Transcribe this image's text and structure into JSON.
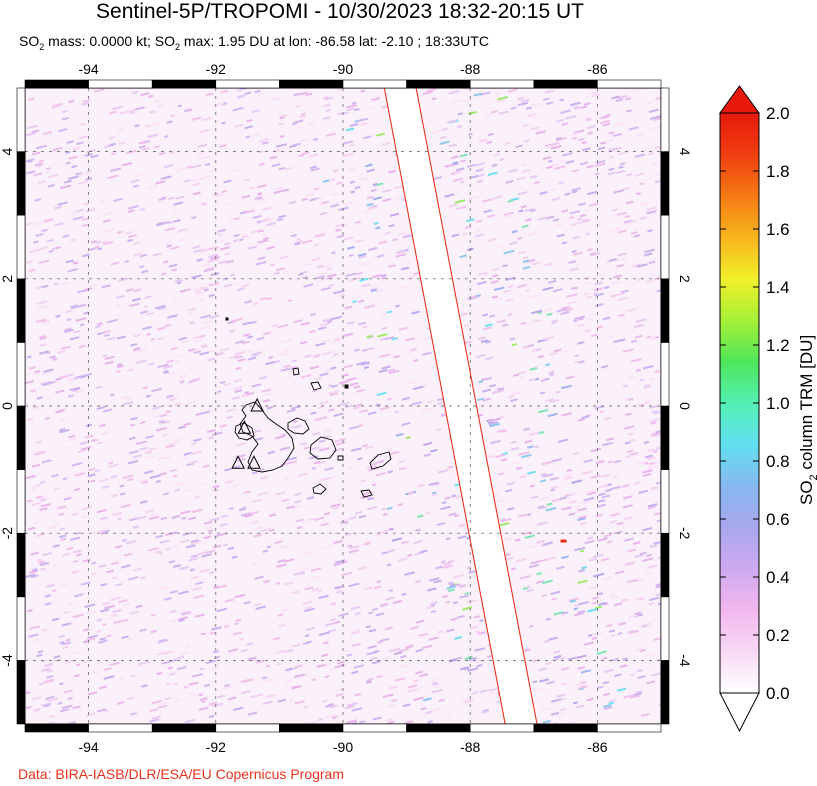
{
  "header": {
    "title": "Sentinel-5P/TROPOMI - 10/30/2023 18:32-20:15 UT",
    "subtitle_parts": [
      "SO",
      "2",
      " mass: 0.0000 kt; SO",
      "2",
      " max: 1.95 DU at lon: -86.58 lat: -2.10 ; 18:33UTC"
    ]
  },
  "map": {
    "lon_range": [
      -95.0,
      -85.0
    ],
    "lat_range": [
      -5.0,
      5.0
    ],
    "lon_ticks": [
      -94,
      -92,
      -90,
      -88,
      -86
    ],
    "lat_ticks": [
      -4,
      -2,
      0,
      2,
      4
    ],
    "lon_tick_labels": [
      "-94",
      "-92",
      "-90",
      "-88",
      "-86"
    ],
    "lat_tick_labels": [
      "-4",
      "-2",
      "0",
      "2",
      "4"
    ],
    "grid": "dashed",
    "swath_gap": {
      "lat_top": 5.0,
      "lat_bottom": -5.0,
      "lon_left_top": -89.35,
      "lon_left_bottom": -87.45,
      "lon_right_top": -88.85,
      "lon_right_bottom": -86.95,
      "edge_color": "#e8321e"
    },
    "volcano_markers": [
      {
        "lon": -91.35,
        "lat": 0.0
      },
      {
        "lon": -91.55,
        "lat": -0.35
      },
      {
        "lon": -91.4,
        "lat": -0.9
      },
      {
        "lon": -91.65,
        "lat": -0.9
      }
    ],
    "background_tint": "#f6e3f4"
  },
  "colorbar": {
    "label": "SO2 column TRM [DU]",
    "label_parts": [
      "SO",
      "2",
      " column TRM [DU]"
    ],
    "min": 0.0,
    "max": 2.0,
    "tick_labels": [
      "0.0",
      "0.2",
      "0.4",
      "0.6",
      "0.8",
      "1.0",
      "1.2",
      "1.4",
      "1.6",
      "1.8",
      "2.0"
    ],
    "colors": [
      "#ffffff",
      "#f7d9f4",
      "#f2b7ee",
      "#cfa9f0",
      "#a9a7ee",
      "#86b8f0",
      "#62e0f0",
      "#53f0b4",
      "#4fe65a",
      "#a6f036",
      "#f2f02a",
      "#f7b41e",
      "#f57a14",
      "#ef3d10",
      "#e81a0c"
    ],
    "over_color": "#e8180a",
    "under_color": "#ffffff"
  },
  "footer": {
    "credit": "Data: BIRA-IASB/DLR/ESA/EU Copernicus Program"
  }
}
